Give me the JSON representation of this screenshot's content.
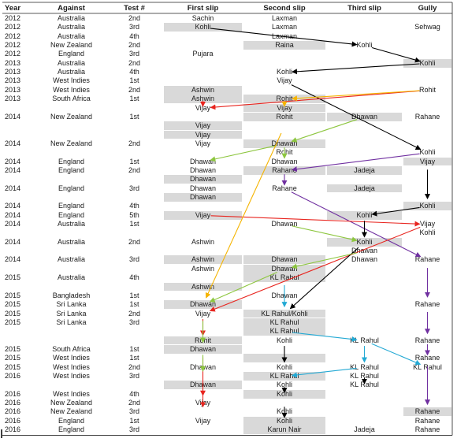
{
  "chart_data": {
    "type": "table",
    "headers": [
      "Year",
      "Against",
      "Test #",
      "First slip",
      "Second slip",
      "Third slip",
      "Gully"
    ],
    "rows": [
      {
        "year": "2012",
        "against": "Australia",
        "test": "2nd",
        "first": "Sachin",
        "second": "Laxman",
        "third": "",
        "gully": ""
      },
      {
        "year": "2012",
        "against": "Australia",
        "test": "3rd",
        "first": "Kohli",
        "second": "Laxman",
        "third": "",
        "gully": "Sehwag"
      },
      {
        "year": "2012",
        "against": "Australia",
        "test": "4th",
        "first": "",
        "second": "Laxman",
        "third": "",
        "gully": ""
      },
      {
        "year": "2012",
        "against": "New Zealand",
        "test": "2nd",
        "first": "",
        "second": "Raina",
        "third": "Kohli",
        "gully": ""
      },
      {
        "year": "2012",
        "against": "England",
        "test": "3rd",
        "first": "Pujara",
        "second": "",
        "third": "",
        "gully": ""
      },
      {
        "year": "2013",
        "against": "Australia",
        "test": "2nd",
        "first": "",
        "second": "",
        "third": "",
        "gully": "Kohli"
      },
      {
        "year": "2013",
        "against": "Australia",
        "test": "4th",
        "first": "",
        "second": "Kohli",
        "third": "",
        "gully": ""
      },
      {
        "year": "2013",
        "against": "West Indies",
        "test": "1st",
        "first": "",
        "second": "Vijay",
        "third": "",
        "gully": ""
      },
      {
        "year": "2013",
        "against": "West Indies",
        "test": "2nd",
        "first": "Ashwin",
        "second": "",
        "third": "",
        "gully": "Rohit"
      },
      {
        "year": "2013",
        "against": "South Africa",
        "test": "1st",
        "first": "Ashwin",
        "second": "Rohit",
        "third": "",
        "gully": ""
      },
      {
        "year": "",
        "against": "",
        "test": "",
        "first": "Vijay",
        "second": "Vijay",
        "third": "",
        "gully": ""
      },
      {
        "year": "2014",
        "against": "New Zealand",
        "test": "1st",
        "first": "",
        "second": "Rohit",
        "third": "Dhawan",
        "gully": "Rahane"
      },
      {
        "year": "",
        "against": "",
        "test": "",
        "first": "Vijay",
        "second": "",
        "third": "",
        "gully": ""
      },
      {
        "year": "",
        "against": "",
        "test": "",
        "first": "Vijay",
        "second": "",
        "third": "",
        "gully": ""
      },
      {
        "year": "2014",
        "against": "New Zealand",
        "test": "2nd",
        "first": "Vijay",
        "second": "Dhawan",
        "third": "",
        "gully": ""
      },
      {
        "year": "",
        "against": "",
        "test": "",
        "first": "",
        "second": "Rohit",
        "third": "",
        "gully": "Kohli"
      },
      {
        "year": "2014",
        "against": "England",
        "test": "1st",
        "first": "Dhawan",
        "second": "Dhawan",
        "third": "",
        "gully": "Vijay"
      },
      {
        "year": "2014",
        "against": "England",
        "test": "2nd",
        "first": "Dhawan",
        "second": "Rahane",
        "third": "Jadeja",
        "gully": ""
      },
      {
        "year": "",
        "against": "",
        "test": "",
        "first": "Dhawan",
        "second": "",
        "third": "",
        "gully": ""
      },
      {
        "year": "2014",
        "against": "England",
        "test": "3rd",
        "first": "Dhawan",
        "second": "Rahane",
        "third": "Jadeja",
        "gully": ""
      },
      {
        "year": "",
        "against": "",
        "test": "",
        "first": "Dhawan",
        "second": "",
        "third": "",
        "gully": ""
      },
      {
        "year": "2014",
        "against": "England",
        "test": "4th",
        "first": "",
        "second": "",
        "third": "",
        "gully": "Kohli"
      },
      {
        "year": "2014",
        "against": "England",
        "test": "5th",
        "first": "Vijay",
        "second": "",
        "third": "Kohli",
        "gully": ""
      },
      {
        "year": "2014",
        "against": "Australia",
        "test": "1st",
        "first": "",
        "second": "Dhawan",
        "third": "",
        "gully": "Vijay"
      },
      {
        "year": "",
        "against": "",
        "test": "",
        "first": "",
        "second": "",
        "third": "",
        "gully": "Kohli"
      },
      {
        "year": "2014",
        "against": "Australia",
        "test": "2nd",
        "first": "Ashwin",
        "second": "",
        "third": "Kohli",
        "gully": ""
      },
      {
        "year": "",
        "against": "",
        "test": "",
        "first": "",
        "second": "",
        "third": "Dhawan",
        "gully": ""
      },
      {
        "year": "2014",
        "against": "Australia",
        "test": "3rd",
        "first": "Ashwin",
        "second": "Dhawan",
        "third": "Dhawan",
        "gully": "Rahane"
      },
      {
        "year": "",
        "against": "",
        "test": "",
        "first": "Ashwin",
        "second": "Dhawan",
        "third": "",
        "gully": ""
      },
      {
        "year": "2015",
        "against": "Australia",
        "test": "4th",
        "first": "",
        "second": "KL Rahul",
        "third": "",
        "gully": ""
      },
      {
        "year": "",
        "against": "",
        "test": "",
        "first": "Ashwin",
        "second": "",
        "third": "",
        "gully": ""
      },
      {
        "year": "2015",
        "against": "Bangladesh",
        "test": "1st",
        "first": "",
        "second": "Dhawan",
        "third": "",
        "gully": ""
      },
      {
        "year": "2015",
        "against": "Sri Lanka",
        "test": "1st",
        "first": "Dhawan",
        "second": "",
        "third": "",
        "gully": "Rahane"
      },
      {
        "year": "2015",
        "against": "Sri Lanka",
        "test": "2nd",
        "first": "Vijay",
        "second": "KL Rahul/Kohli",
        "third": "",
        "gully": ""
      },
      {
        "year": "2015",
        "against": "Sri Lanka",
        "test": "3rd",
        "first": "",
        "second": "KL Rahul",
        "third": "",
        "gully": ""
      },
      {
        "year": "",
        "against": "",
        "test": "",
        "first": "",
        "second": "KL Rahul",
        "third": "",
        "gully": ""
      },
      {
        "year": "",
        "against": "",
        "test": "",
        "first": "Rohit",
        "second": "Kohli",
        "third": "KL Rahul",
        "gully": "Rahane"
      },
      {
        "year": "2015",
        "against": "South Africa",
        "test": "1st",
        "first": "Dhawan",
        "second": "",
        "third": "",
        "gully": ""
      },
      {
        "year": "2015",
        "against": "West Indies",
        "test": "1st",
        "first": "",
        "second": "",
        "third": "",
        "gully": "Rahane"
      },
      {
        "year": "2015",
        "against": "West Indies",
        "test": "2nd",
        "first": "Dhawan",
        "second": "Kohli",
        "third": "KL Rahul",
        "gully": "KL Rahul"
      },
      {
        "year": "2016",
        "against": "West Indies",
        "test": "3rd",
        "first": "",
        "second": "KL Rahul",
        "third": "KL Rahul",
        "gully": ""
      },
      {
        "year": "",
        "against": "",
        "test": "",
        "first": "Dhawan",
        "second": "Kohli",
        "third": "KL Rahul",
        "gully": ""
      },
      {
        "year": "2016",
        "against": "West Indies",
        "test": "4th",
        "first": "",
        "second": "Kohli",
        "third": "",
        "gully": ""
      },
      {
        "year": "2016",
        "against": "New Zealand",
        "test": "2nd",
        "first": "Vijay",
        "second": "",
        "third": "",
        "gully": ""
      },
      {
        "year": "2016",
        "against": "New Zealand",
        "test": "3rd",
        "first": "",
        "second": "Kohli",
        "third": "",
        "gully": "Rahane"
      },
      {
        "year": "2016",
        "against": "England",
        "test": "1st",
        "first": "Vijay",
        "second": "Kohli",
        "third": "",
        "gully": "Rahane"
      },
      {
        "year": "2016",
        "against": "England",
        "test": "3rd",
        "first": "",
        "second": "Karun Nair",
        "third": "Jadeja",
        "gully": "Rahane"
      }
    ],
    "shaded": [
      [
        1,
        3
      ],
      [
        3,
        4
      ],
      [
        5,
        6
      ],
      [
        8,
        3
      ],
      [
        9,
        3
      ],
      [
        9,
        4
      ],
      [
        10,
        4
      ],
      [
        11,
        4
      ],
      [
        11,
        5
      ],
      [
        12,
        3
      ],
      [
        13,
        3
      ],
      [
        14,
        4
      ],
      [
        16,
        6
      ],
      [
        17,
        4
      ],
      [
        17,
        5
      ],
      [
        18,
        3
      ],
      [
        19,
        5
      ],
      [
        20,
        3
      ],
      [
        21,
        6
      ],
      [
        22,
        3
      ],
      [
        22,
        5
      ],
      [
        25,
        5
      ],
      [
        27,
        3
      ],
      [
        27,
        4
      ],
      [
        28,
        4
      ],
      [
        29,
        4
      ],
      [
        30,
        3
      ],
      [
        32,
        3
      ],
      [
        33,
        4
      ],
      [
        34,
        4
      ],
      [
        35,
        4
      ],
      [
        36,
        3
      ],
      [
        37,
        3
      ],
      [
        38,
        4
      ],
      [
        40,
        4
      ],
      [
        41,
        3
      ],
      [
        42,
        4
      ],
      [
        44,
        6
      ],
      [
        45,
        4
      ],
      [
        46,
        4
      ]
    ],
    "arrow_colors": {
      "black": "#000000",
      "red": "#e8251f",
      "orange": "#f5b400",
      "green": "#8dc63f",
      "purple": "#7030a0",
      "cyan": "#23a9d4"
    }
  }
}
